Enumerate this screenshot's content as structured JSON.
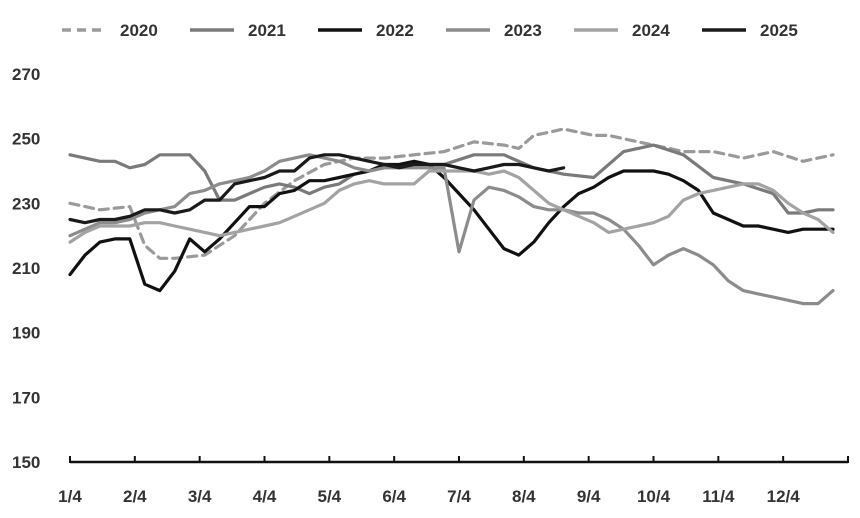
{
  "chart_data": {
    "type": "line",
    "title": "",
    "xlabel": "",
    "ylabel": "",
    "ylim": [
      150,
      270
    ],
    "y_ticks": [
      150,
      170,
      190,
      210,
      230,
      250,
      270
    ],
    "x_ticks": [
      "1/4",
      "2/4",
      "3/4",
      "4/4",
      "5/4",
      "6/4",
      "7/4",
      "8/4",
      "9/4",
      "10/4",
      "11/4",
      "12/4"
    ],
    "x_unit": "week of year",
    "grid": false,
    "legend_position": "top",
    "series": [
      {
        "name": "2020",
        "color": "#9a9a9a",
        "dashed": true,
        "x": [
          1,
          3,
          5,
          6,
          7,
          8,
          10,
          12,
          14,
          16,
          18,
          20,
          22,
          24,
          26,
          28,
          30,
          31,
          32,
          33,
          34,
          35,
          36,
          37,
          38,
          40,
          42,
          44,
          46,
          48,
          50,
          52
        ],
        "y": [
          230,
          228,
          229,
          217,
          213,
          213,
          214,
          220,
          230,
          237,
          242,
          244,
          244,
          245,
          246,
          249,
          248,
          247,
          251,
          252,
          253,
          252,
          251,
          251,
          250,
          248,
          246,
          246,
          244,
          246,
          243,
          245
        ]
      },
      {
        "name": "2021",
        "color": "#7a7a7a",
        "dashed": false,
        "x": [
          1,
          2,
          3,
          4,
          5,
          6,
          7,
          8,
          9,
          10,
          11,
          12,
          13,
          14,
          15,
          16,
          17,
          18,
          19,
          20,
          22,
          24,
          26,
          28,
          30,
          32,
          34,
          36,
          38,
          40,
          42,
          44,
          46,
          48,
          49,
          50,
          51,
          52
        ],
        "y": [
          245,
          244,
          243,
          243,
          241,
          242,
          245,
          245,
          245,
          240,
          231,
          231,
          233,
          235,
          236,
          235,
          233,
          235,
          236,
          239,
          241,
          242,
          242,
          245,
          245,
          241,
          239,
          238,
          246,
          248,
          245,
          238,
          236,
          233,
          227,
          227,
          228,
          228
        ]
      },
      {
        "name": "2022",
        "color": "#111111",
        "dashed": false,
        "x": [
          1,
          2,
          3,
          4,
          5,
          6,
          7,
          8,
          9,
          10,
          11,
          12,
          13,
          14,
          15,
          16,
          17,
          18,
          19,
          20,
          21,
          22,
          23,
          24,
          25,
          26,
          27,
          28,
          29,
          30,
          31,
          32,
          33,
          34,
          35,
          36,
          37,
          38,
          39,
          40,
          41,
          42,
          43,
          44,
          45,
          46,
          47,
          48,
          49,
          50,
          51,
          52
        ],
        "y": [
          208,
          214,
          218,
          219,
          219,
          205,
          203,
          209,
          219,
          215,
          219,
          224,
          229,
          229,
          233,
          234,
          237,
          237,
          238,
          239,
          240,
          242,
          242,
          243,
          242,
          238,
          233,
          228,
          222,
          216,
          214,
          218,
          224,
          229,
          233,
          235,
          238,
          240,
          240,
          240,
          239,
          237,
          234,
          227,
          225,
          223,
          223,
          222,
          221,
          222,
          222,
          222
        ]
      },
      {
        "name": "2023",
        "color": "#8c8c8c",
        "dashed": false,
        "x": [
          1,
          2,
          3,
          4,
          5,
          6,
          7,
          8,
          9,
          10,
          11,
          12,
          13,
          14,
          15,
          16,
          17,
          18,
          19,
          20,
          21,
          22,
          23,
          24,
          25,
          26,
          27,
          28,
          29,
          30,
          31,
          32,
          33,
          34,
          35,
          36,
          37,
          38,
          39,
          40,
          41,
          42,
          43,
          44,
          45,
          46,
          47,
          48,
          49,
          50,
          51,
          52
        ],
        "y": [
          220,
          222,
          224,
          224,
          225,
          227,
          228,
          229,
          233,
          234,
          236,
          237,
          238,
          240,
          243,
          244,
          245,
          244,
          243,
          241,
          240,
          241,
          241,
          241,
          241,
          241,
          215,
          231,
          235,
          234,
          232,
          229,
          228,
          228,
          227,
          227,
          225,
          222,
          217,
          211,
          214,
          216,
          214,
          211,
          206,
          203,
          202,
          201,
          200,
          199,
          199,
          203
        ]
      },
      {
        "name": "2024",
        "color": "#a3a3a3",
        "dashed": false,
        "x": [
          1,
          2,
          3,
          4,
          5,
          6,
          7,
          8,
          9,
          10,
          11,
          12,
          13,
          14,
          15,
          16,
          17,
          18,
          19,
          20,
          21,
          22,
          23,
          24,
          25,
          26,
          27,
          28,
          29,
          30,
          31,
          32,
          33,
          34,
          35,
          36,
          37,
          38,
          39,
          40,
          41,
          42,
          43,
          44,
          45,
          46,
          47,
          48,
          49,
          50,
          51,
          52
        ],
        "y": [
          218,
          221,
          223,
          223,
          223,
          224,
          224,
          223,
          222,
          221,
          220,
          221,
          222,
          223,
          224,
          226,
          228,
          230,
          234,
          236,
          237,
          236,
          236,
          236,
          240,
          240,
          240,
          240,
          239,
          240,
          238,
          234,
          230,
          228,
          226,
          224,
          221,
          222,
          223,
          224,
          226,
          231,
          233,
          234,
          235,
          236,
          236,
          234,
          230,
          227,
          225,
          221
        ]
      },
      {
        "name": "2025",
        "color": "#1a1a1a",
        "dashed": false,
        "x": [
          1,
          2,
          3,
          4,
          5,
          6,
          7,
          8,
          9,
          10,
          11,
          12,
          13,
          14,
          15,
          16,
          17,
          18,
          19,
          20,
          21,
          22,
          23,
          24,
          25,
          26,
          27,
          28,
          29,
          30,
          31,
          32,
          33,
          34
        ],
        "y": [
          225,
          224,
          225,
          225,
          226,
          228,
          228,
          227,
          228,
          231,
          231,
          236,
          237,
          238,
          240,
          240,
          244,
          245,
          245,
          244,
          243,
          242,
          241,
          242,
          242,
          242,
          241,
          240,
          241,
          242,
          242,
          241,
          240,
          241
        ]
      }
    ]
  }
}
